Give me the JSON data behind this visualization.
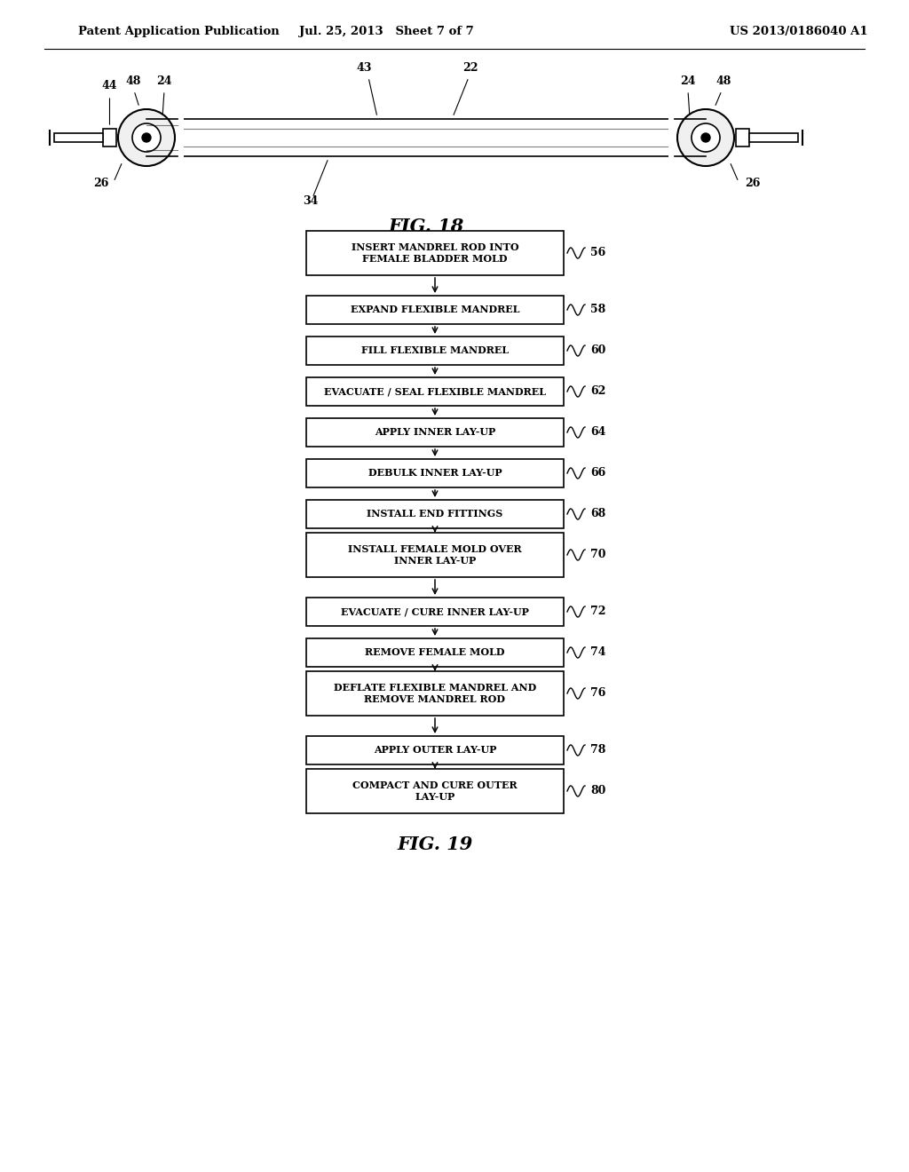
{
  "background_color": "#ffffff",
  "header_left": "Patent Application Publication",
  "header_center": "Jul. 25, 2013   Sheet 7 of 7",
  "header_right": "US 2013/0186040 A1",
  "fig18_label": "FIG. 18",
  "fig19_label": "FIG. 19",
  "flowchart_steps": [
    {
      "text": "INSERT MANDREL ROD INTO\nFEMALE BLADDER MOLD",
      "label": "56",
      "two_line": true
    },
    {
      "text": "EXPAND FLEXIBLE MANDREL",
      "label": "58",
      "two_line": false
    },
    {
      "text": "FILL FLEXIBLE MANDREL",
      "label": "60",
      "two_line": false
    },
    {
      "text": "EVACUATE / SEAL FLEXIBLE MANDREL",
      "label": "62",
      "two_line": false
    },
    {
      "text": "APPLY INNER LAY-UP",
      "label": "64",
      "two_line": false
    },
    {
      "text": "DEBULK INNER LAY-UP",
      "label": "66",
      "two_line": false
    },
    {
      "text": "INSTALL END FITTINGS",
      "label": "68",
      "two_line": false
    },
    {
      "text": "INSTALL FEMALE MOLD OVER\nINNER LAY-UP",
      "label": "70",
      "two_line": true
    },
    {
      "text": "EVACUATE / CURE INNER LAY-UP",
      "label": "72",
      "two_line": false
    },
    {
      "text": "REMOVE FEMALE MOLD",
      "label": "74",
      "two_line": false
    },
    {
      "text": "DEFLATE FLEXIBLE MANDREL AND\nREMOVE MANDREL ROD",
      "label": "76",
      "two_line": true
    },
    {
      "text": "APPLY OUTER LAY-UP",
      "label": "78",
      "two_line": false
    },
    {
      "text": "COMPACT AND CURE OUTER\nLAY-UP",
      "label": "80",
      "two_line": true
    }
  ]
}
